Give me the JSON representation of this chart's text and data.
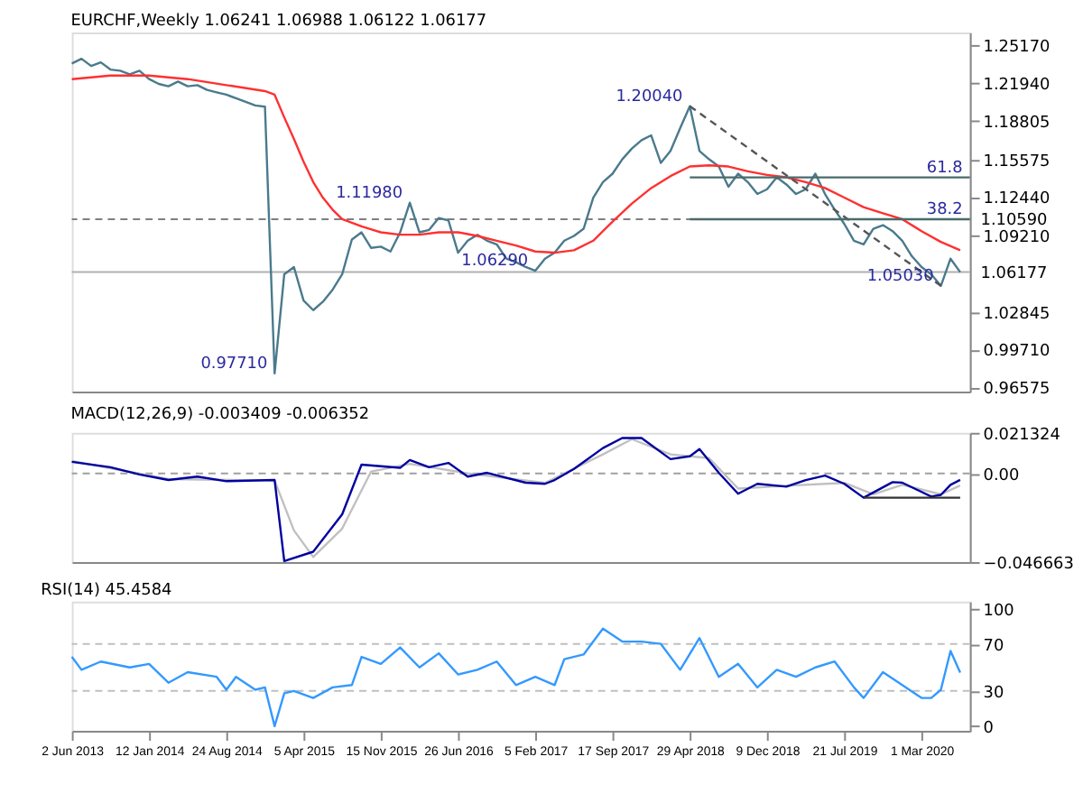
{
  "chart_data": [
    {
      "type": "line",
      "title": "EURCHF,Weekly  1.06241 1.06988 1.06122 1.06177",
      "tick_labels": "y",
      "xlim": [
        "2013-06-02",
        "2020-07-19"
      ],
      "ylim": [
        0.962,
        1.262
      ],
      "yticks": [
        {
          "value": 1.2517,
          "label": "1.25170"
        },
        {
          "value": 1.2194,
          "label": "1.21940"
        },
        {
          "value": 1.18805,
          "label": "1.18805"
        },
        {
          "value": 1.15575,
          "label": "1.15575"
        },
        {
          "value": 1.1244,
          "label": "1.12440"
        },
        {
          "value": 1.0921,
          "label": "1.09210"
        },
        {
          "value": 1.02845,
          "label": "1.02845"
        },
        {
          "value": 0.9971,
          "label": "0.99710"
        },
        {
          "value": 0.96575,
          "label": "0.96575"
        }
      ],
      "x": [
        "2013-06-02",
        "2013-06-30",
        "2013-07-28",
        "2013-08-25",
        "2013-09-22",
        "2013-10-20",
        "2013-11-17",
        "2013-12-15",
        "2014-01-12",
        "2014-02-09",
        "2014-03-09",
        "2014-04-06",
        "2014-05-04",
        "2014-06-01",
        "2014-06-29",
        "2014-07-27",
        "2014-08-24",
        "2014-09-21",
        "2014-10-19",
        "2014-11-16",
        "2014-12-14",
        "2015-01-11",
        "2015-02-08",
        "2015-03-08",
        "2015-04-05",
        "2015-05-03",
        "2015-05-31",
        "2015-06-28",
        "2015-07-26",
        "2015-08-23",
        "2015-09-20",
        "2015-10-18",
        "2015-11-15",
        "2015-12-13",
        "2016-01-10",
        "2016-02-07",
        "2016-03-06",
        "2016-04-03",
        "2016-05-01",
        "2016-05-29",
        "2016-06-26",
        "2016-07-24",
        "2016-08-21",
        "2016-09-18",
        "2016-10-16",
        "2016-11-13",
        "2016-12-11",
        "2017-01-08",
        "2017-02-05",
        "2017-03-05",
        "2017-04-02",
        "2017-04-30",
        "2017-05-28",
        "2017-06-25",
        "2017-07-23",
        "2017-08-20",
        "2017-09-17",
        "2017-10-15",
        "2017-11-12",
        "2017-12-10",
        "2018-01-07",
        "2018-02-04",
        "2018-03-04",
        "2018-04-01",
        "2018-04-29",
        "2018-05-27",
        "2018-06-24",
        "2018-07-22",
        "2018-08-19",
        "2018-09-16",
        "2018-10-14",
        "2018-11-11",
        "2018-12-09",
        "2019-01-06",
        "2019-02-03",
        "2019-03-03",
        "2019-03-31",
        "2019-04-28",
        "2019-05-26",
        "2019-06-23",
        "2019-07-21",
        "2019-08-18",
        "2019-09-15",
        "2019-10-13",
        "2019-11-10",
        "2019-12-08",
        "2020-01-05",
        "2020-02-02",
        "2020-03-01",
        "2020-03-29",
        "2020-04-26",
        "2020-05-24",
        "2020-06-21"
      ],
      "series": [
        {
          "color": "#4a7a8c",
          "values": [
            1.236,
            1.24,
            1.234,
            1.237,
            1.231,
            1.23,
            1.227,
            1.23,
            1.223,
            1.219,
            1.217,
            1.221,
            1.217,
            1.218,
            1.214,
            1.212,
            1.21,
            1.207,
            1.204,
            1.201,
            1.2,
            0.9771,
            1.06,
            1.066,
            1.038,
            1.03,
            1.037,
            1.047,
            1.06,
            1.089,
            1.095,
            1.082,
            1.083,
            1.079,
            1.095,
            1.1198,
            1.095,
            1.097,
            1.107,
            1.105,
            1.078,
            1.088,
            1.093,
            1.088,
            1.085,
            1.073,
            1.07,
            1.066,
            1.0629,
            1.073,
            1.078,
            1.088,
            1.092,
            1.098,
            1.124,
            1.137,
            1.144,
            1.156,
            1.165,
            1.172,
            1.176,
            1.153,
            1.163,
            1.182,
            1.2004,
            1.163,
            1.156,
            1.15,
            1.133,
            1.144,
            1.137,
            1.127,
            1.131,
            1.141,
            1.135,
            1.127,
            1.131,
            1.144,
            1.127,
            1.114,
            1.102,
            1.088,
            1.085,
            1.098,
            1.101,
            1.096,
            1.088,
            1.075,
            1.066,
            1.06,
            1.0503,
            1.073,
            1.06177
          ]
        },
        {
          "color": "#ff3030",
          "x": [
            "2013-06-02",
            "2013-09-22",
            "2014-01-12",
            "2014-05-04",
            "2014-08-24",
            "2014-12-14",
            "2015-01-11",
            "2015-02-08",
            "2015-03-08",
            "2015-04-05",
            "2015-05-03",
            "2015-05-31",
            "2015-06-28",
            "2015-07-26",
            "2015-09-20",
            "2015-11-15",
            "2016-01-10",
            "2016-03-06",
            "2016-05-01",
            "2016-06-26",
            "2016-08-21",
            "2016-10-16",
            "2016-12-11",
            "2017-02-05",
            "2017-04-02",
            "2017-05-28",
            "2017-07-23",
            "2017-09-17",
            "2017-11-12",
            "2018-01-07",
            "2018-03-04",
            "2018-04-29",
            "2018-06-24",
            "2018-08-19",
            "2018-10-14",
            "2018-12-09",
            "2019-02-03",
            "2019-03-31",
            "2019-05-26",
            "2019-07-21",
            "2019-09-15",
            "2019-11-10",
            "2020-01-05",
            "2020-03-01",
            "2020-04-26",
            "2020-06-21"
          ],
          "values": [
            1.223,
            1.226,
            1.226,
            1.223,
            1.218,
            1.213,
            1.21,
            1.191,
            1.173,
            1.154,
            1.137,
            1.124,
            1.114,
            1.106,
            1.1,
            1.095,
            1.093,
            1.093,
            1.095,
            1.095,
            1.092,
            1.088,
            1.084,
            1.079,
            1.078,
            1.08,
            1.088,
            1.104,
            1.119,
            1.132,
            1.142,
            1.15,
            1.151,
            1.15,
            1.146,
            1.143,
            1.141,
            1.137,
            1.132,
            1.124,
            1.116,
            1.111,
            1.106,
            1.096,
            1.087,
            1.08
          ]
        },
        {
          "color": "#555555",
          "line_style": "dashed",
          "x": [
            "2018-04-29",
            "2020-04-26"
          ],
          "values": [
            1.2004,
            1.0503
          ]
        },
        {
          "color": "#4a6a6a",
          "x": [
            "2018-04-29",
            "2020-07-19"
          ],
          "values": [
            1.1059,
            1.1059
          ]
        },
        {
          "color": "#4a6a6a",
          "x": [
            "2018-04-29",
            "2020-07-19"
          ],
          "values": [
            1.1409,
            1.1409
          ]
        }
      ],
      "ref_lines": [
        {
          "axis": "y",
          "value": 1.1059,
          "label": "1.10590",
          "line_style": "dashed",
          "color": "#808080"
        },
        {
          "axis": "y",
          "value": 1.06177,
          "label": "1.06177",
          "color": "#b0b0b0"
        }
      ],
      "annotations": [
        {
          "text": "1.20040",
          "x": "2018-04-29",
          "y": 1.2004
        },
        {
          "text": "1.11980",
          "x": "2016-02-07",
          "y": 1.1198
        },
        {
          "text": "1.06290",
          "x": "2017-02-05",
          "y": 1.0629
        },
        {
          "text": "0.97710",
          "x": "2015-01-11",
          "y": 0.9771
        },
        {
          "text": "1.05030",
          "x": "2020-04-26",
          "y": 1.0503
        },
        {
          "text": "38.2",
          "x": "2020-07-19",
          "y": 1.1059
        },
        {
          "text": "61.8",
          "x": "2020-07-19",
          "y": 1.1409
        }
      ]
    },
    {
      "type": "line",
      "title": "MACD(12,26,9) -0.003409 -0.006352",
      "tick_labels": "y",
      "xlim": [
        "2013-06-02",
        "2020-07-19"
      ],
      "ylim": [
        -0.046663,
        0.021324
      ],
      "yticks": [
        0.021324,
        {
          "value": 0,
          "label": "0.00"
        },
        -0.046663
      ],
      "series": [
        {
          "color": "#c0c0c0",
          "x": [
            "2013-06-02",
            "2014-03-09",
            "2015-01-11",
            "2015-03-08",
            "2015-05-03",
            "2015-07-26",
            "2015-10-18",
            "2016-02-07",
            "2016-07-24",
            "2017-03-05",
            "2017-08-20",
            "2017-11-12",
            "2018-03-04",
            "2018-06-24",
            "2018-09-16",
            "2019-02-03",
            "2019-07-21",
            "2019-10-13",
            "2020-01-05",
            "2020-04-26",
            "2020-06-21"
          ],
          "values": [
            0.0065,
            -0.003,
            -0.0038,
            -0.03,
            -0.044,
            -0.029,
            0.001,
            0.005,
            0.0,
            -0.005,
            0.01,
            0.018,
            0.01,
            0.008,
            -0.008,
            -0.0065,
            -0.005,
            -0.011,
            -0.006,
            -0.011,
            -0.0064
          ]
        },
        {
          "color": "#0000a0",
          "x": [
            "2013-06-02",
            "2013-09-22",
            "2013-12-15",
            "2014-03-09",
            "2014-06-01",
            "2014-08-24",
            "2015-01-11",
            "2015-02-08",
            "2015-05-03",
            "2015-07-26",
            "2015-09-20",
            "2016-01-10",
            "2016-02-07",
            "2016-04-03",
            "2016-05-29",
            "2016-07-24",
            "2016-09-18",
            "2017-01-08",
            "2017-03-05",
            "2017-04-02",
            "2017-05-28",
            "2017-08-20",
            "2017-10-15",
            "2017-12-10",
            "2018-03-04",
            "2018-04-29",
            "2018-05-27",
            "2018-07-22",
            "2018-09-16",
            "2018-11-11",
            "2019-02-03",
            "2019-03-31",
            "2019-05-26",
            "2019-07-21",
            "2019-09-15",
            "2019-12-08",
            "2020-01-05",
            "2020-03-29",
            "2020-04-26",
            "2020-05-24",
            "2020-06-21"
          ],
          "values": [
            0.0061,
            0.0032,
            -0.0006,
            -0.0035,
            -0.0017,
            -0.0041,
            -0.0035,
            -0.0461,
            -0.0412,
            -0.0215,
            0.0046,
            0.0029,
            0.007,
            0.0032,
            0.0055,
            -0.0017,
            0.0003,
            -0.0049,
            -0.0055,
            -0.0035,
            0.0023,
            0.0133,
            0.0186,
            0.0186,
            0.0075,
            0.009,
            0.0128,
            0.0003,
            -0.0107,
            -0.0055,
            -0.007,
            -0.0035,
            -0.0012,
            -0.0055,
            -0.0128,
            -0.0046,
            -0.0049,
            -0.0122,
            -0.0113,
            -0.006,
            -0.0034
          ]
        },
        {
          "color": "#333333",
          "x": [
            "2019-09-15",
            "2020-06-21"
          ],
          "values": [
            -0.0128,
            -0.0128
          ]
        }
      ],
      "ref_lines": [
        {
          "axis": "y",
          "value": 0,
          "line_style": "dashed",
          "color": "#a0a0a0"
        }
      ]
    },
    {
      "type": "line",
      "title": "RSI(14) 45.4584",
      "xlim": [
        "2013-06-02",
        "2020-07-19"
      ],
      "ylim": [
        -4,
        106
      ],
      "yticks": [
        100,
        70,
        30,
        0
      ],
      "xticks": [
        {
          "value": "2013-06-02",
          "label": "2 Jun 2013"
        },
        {
          "value": "2014-01-12",
          "label": "12 Jan 2014"
        },
        {
          "value": "2014-08-24",
          "label": "24 Aug 2014"
        },
        {
          "value": "2015-04-05",
          "label": "5 Apr 2015"
        },
        {
          "value": "2015-11-15",
          "label": "15 Nov 2015"
        },
        {
          "value": "2016-06-26",
          "label": "26 Jun 2016"
        },
        {
          "value": "2017-02-05",
          "label": "5 Feb 2017"
        },
        {
          "value": "2017-09-17",
          "label": "17 Sep 2017"
        },
        {
          "value": "2018-04-29",
          "label": "29 Apr 2018"
        },
        {
          "value": "2018-12-09",
          "label": "9 Dec 2018"
        },
        {
          "value": "2019-07-21",
          "label": "21 Jul 2019"
        },
        {
          "value": "2020-03-01",
          "label": "1 Mar 2020"
        }
      ],
      "series": [
        {
          "color": "#3399ff",
          "x": [
            "2013-06-02",
            "2013-06-30",
            "2013-08-25",
            "2013-11-17",
            "2014-01-12",
            "2014-03-09",
            "2014-05-04",
            "2014-07-27",
            "2014-08-24",
            "2014-09-21",
            "2014-11-16",
            "2014-12-14",
            "2015-01-11",
            "2015-02-08",
            "2015-03-08",
            "2015-05-03",
            "2015-06-28",
            "2015-08-23",
            "2015-09-20",
            "2015-11-15",
            "2016-01-10",
            "2016-03-06",
            "2016-05-01",
            "2016-06-26",
            "2016-08-21",
            "2016-10-16",
            "2016-12-11",
            "2017-02-05",
            "2017-04-02",
            "2017-04-30",
            "2017-06-25",
            "2017-07-23",
            "2017-08-20",
            "2017-10-15",
            "2017-12-10",
            "2018-02-04",
            "2018-04-01",
            "2018-05-27",
            "2018-07-22",
            "2018-09-16",
            "2018-11-11",
            "2019-01-06",
            "2019-03-03",
            "2019-04-28",
            "2019-06-23",
            "2019-08-18",
            "2019-09-15",
            "2019-11-10",
            "2020-01-05",
            "2020-03-01",
            "2020-03-29",
            "2020-04-26",
            "2020-05-24",
            "2020-06-21"
          ],
          "values": [
            59,
            48,
            55,
            50,
            53,
            37,
            46,
            42,
            31,
            42,
            31,
            33,
            0,
            28,
            30,
            24,
            33,
            35,
            59,
            53,
            67,
            50,
            62,
            44,
            48,
            55,
            35,
            42,
            35,
            57,
            61,
            72,
            83,
            72,
            72,
            70,
            48,
            75,
            42,
            53,
            33,
            48,
            42,
            50,
            55,
            33,
            24,
            46,
            35,
            24,
            24,
            31,
            64,
            45.5
          ]
        }
      ],
      "ref_lines": [
        {
          "axis": "y",
          "value": 70,
          "line_style": "dashed",
          "color": "#c0c0c0"
        },
        {
          "axis": "y",
          "value": 30,
          "line_style": "dashed",
          "color": "#c0c0c0"
        }
      ]
    }
  ]
}
